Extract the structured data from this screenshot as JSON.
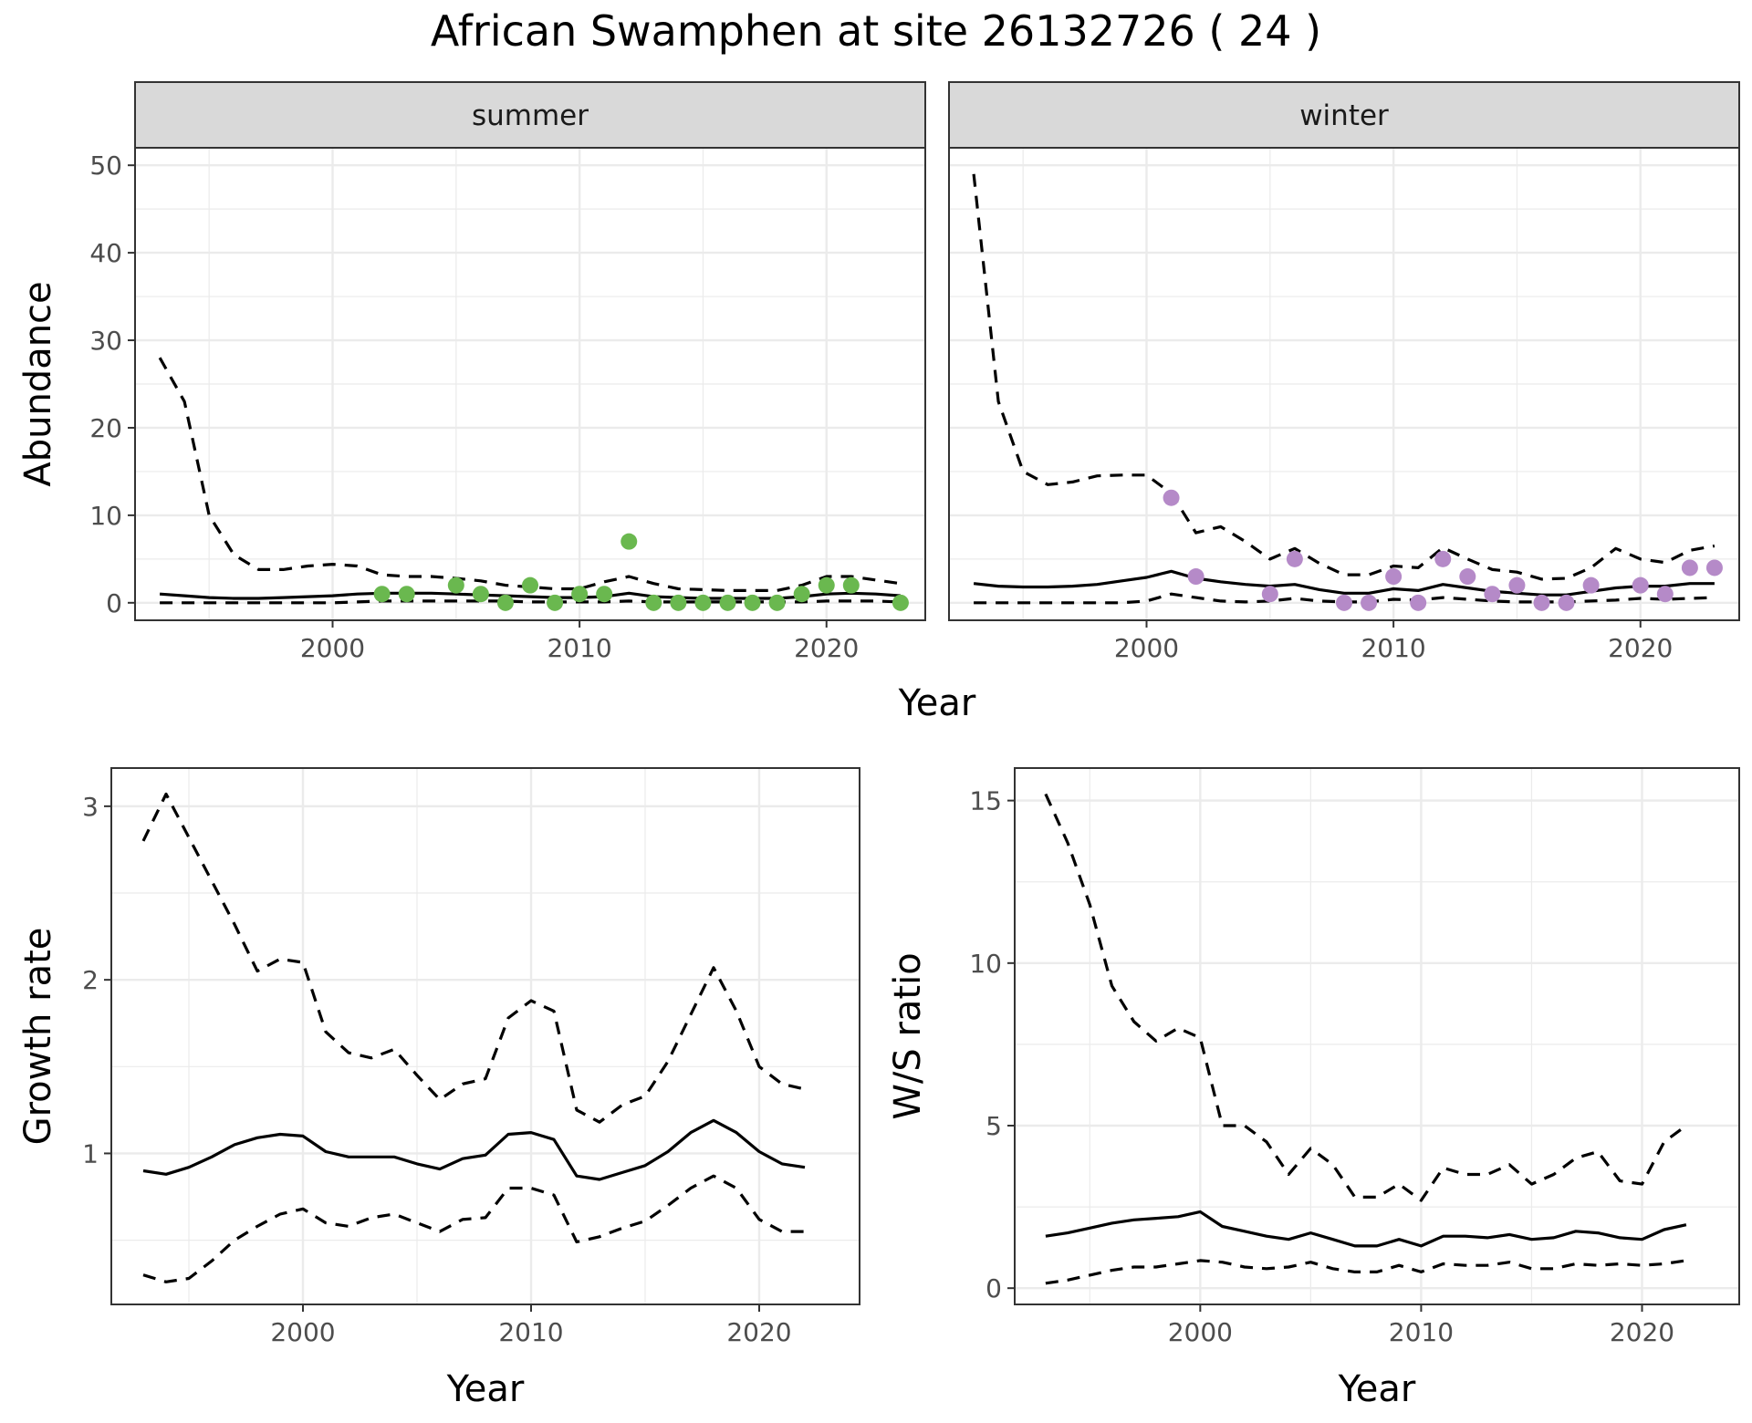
{
  "figure": {
    "title": "African Swamphen at site 26132726 ( 24 )"
  },
  "chart_data": [
    {
      "type": "line",
      "panel": "abundance",
      "facets": [
        "summer",
        "winter"
      ],
      "xlabel": "Year",
      "ylabel": "Abundance",
      "xlim": [
        1992,
        2024
      ],
      "ylim": [
        -2,
        52
      ],
      "x_ticks": [
        2000,
        2010,
        2020
      ],
      "y_ticks": [
        0,
        10,
        20,
        30,
        40,
        50
      ],
      "colors": {
        "summer": "#6ab84f",
        "winter": "#b58ac8"
      },
      "summer": {
        "x": [
          1993,
          1994,
          1995,
          1996,
          1997,
          1998,
          1999,
          2000,
          2001,
          2002,
          2003,
          2004,
          2005,
          2006,
          2007,
          2008,
          2009,
          2010,
          2011,
          2012,
          2013,
          2014,
          2015,
          2016,
          2017,
          2018,
          2019,
          2020,
          2021,
          2022,
          2023
        ],
        "mean": [
          1.0,
          0.8,
          0.6,
          0.5,
          0.5,
          0.6,
          0.7,
          0.8,
          1.0,
          1.1,
          1.1,
          1.1,
          1.0,
          0.9,
          0.8,
          0.7,
          0.6,
          0.6,
          0.7,
          1.1,
          0.7,
          0.6,
          0.5,
          0.5,
          0.5,
          0.5,
          0.7,
          1.0,
          1.1,
          1.0,
          0.8
        ],
        "upper": [
          28,
          23,
          10,
          5.5,
          3.8,
          3.8,
          4.2,
          4.4,
          4.2,
          3.2,
          3.0,
          3.0,
          2.8,
          2.5,
          2.0,
          1.8,
          1.6,
          1.6,
          2.4,
          3.0,
          2.2,
          1.6,
          1.5,
          1.4,
          1.4,
          1.4,
          2.0,
          3.0,
          3.0,
          2.6,
          2.2
        ],
        "lower": [
          0,
          0,
          0,
          0,
          0,
          0,
          0,
          0,
          0.1,
          0.2,
          0.2,
          0.2,
          0.2,
          0.2,
          0.2,
          0.1,
          0.1,
          0.1,
          0.1,
          0.2,
          0.1,
          0.1,
          0.1,
          0.1,
          0.1,
          0.1,
          0.1,
          0.2,
          0.2,
          0.2,
          0.1
        ],
        "points": {
          "x": [
            2002,
            2003,
            2005,
            2006,
            2007,
            2008,
            2009,
            2010,
            2011,
            2012,
            2013,
            2014,
            2015,
            2016,
            2017,
            2018,
            2019,
            2020,
            2021,
            2023
          ],
          "y": [
            1,
            1,
            2,
            1,
            0,
            2,
            0,
            1,
            1,
            7,
            0,
            0,
            0,
            0,
            0,
            0,
            1,
            2,
            2,
            0
          ]
        }
      },
      "winter": {
        "x": [
          1993,
          1994,
          1995,
          1996,
          1997,
          1998,
          1999,
          2000,
          2001,
          2002,
          2003,
          2004,
          2005,
          2006,
          2007,
          2008,
          2009,
          2010,
          2011,
          2012,
          2013,
          2014,
          2015,
          2016,
          2017,
          2018,
          2019,
          2020,
          2021,
          2022,
          2023
        ],
        "mean": [
          2.2,
          1.9,
          1.8,
          1.8,
          1.9,
          2.1,
          2.5,
          2.9,
          3.6,
          2.8,
          2.4,
          2.1,
          1.9,
          2.1,
          1.5,
          1.1,
          1.1,
          1.6,
          1.4,
          2.1,
          1.7,
          1.3,
          1.1,
          0.9,
          0.9,
          1.3,
          1.7,
          1.9,
          1.9,
          2.2,
          2.2
        ],
        "upper": [
          49,
          23,
          15,
          13.5,
          13.8,
          14.5,
          14.6,
          14.6,
          12.5,
          8.0,
          8.7,
          7.0,
          5.0,
          6.2,
          4.5,
          3.2,
          3.2,
          4.2,
          4.0,
          6.3,
          5.0,
          3.8,
          3.5,
          2.7,
          2.8,
          4.0,
          6.2,
          5.0,
          4.6,
          6.0,
          6.5
        ],
        "lower": [
          0,
          0,
          0,
          0,
          0,
          0,
          0,
          0.2,
          1.0,
          0.6,
          0.2,
          0.1,
          0.2,
          0.5,
          0.2,
          0.1,
          0.1,
          0.4,
          0.3,
          0.6,
          0.4,
          0.2,
          0.1,
          0.1,
          0.1,
          0.2,
          0.3,
          0.5,
          0.4,
          0.5,
          0.6
        ],
        "points": {
          "x": [
            2001,
            2002,
            2005,
            2006,
            2008,
            2009,
            2010,
            2011,
            2012,
            2013,
            2014,
            2015,
            2016,
            2017,
            2018,
            2020,
            2021,
            2022,
            2023
          ],
          "y": [
            12,
            3,
            1,
            5,
            0,
            0,
            3,
            0,
            5,
            3,
            1,
            2,
            0,
            0,
            2,
            2,
            1,
            4,
            4
          ]
        }
      }
    },
    {
      "type": "line",
      "panel": "growth",
      "xlabel": "Year",
      "ylabel": "Growth rate",
      "xlim": [
        1991.6,
        2024.4
      ],
      "ylim": [
        0.13,
        3.22
      ],
      "x_ticks": [
        2000,
        2010,
        2020
      ],
      "y_ticks": [
        1,
        2,
        3
      ],
      "x": [
        1993,
        1994,
        1995,
        1996,
        1997,
        1998,
        1999,
        2000,
        2001,
        2002,
        2003,
        2004,
        2005,
        2006,
        2007,
        2008,
        2009,
        2010,
        2011,
        2012,
        2013,
        2014,
        2015,
        2016,
        2017,
        2018,
        2019,
        2020,
        2021,
        2022
      ],
      "mean": [
        0.9,
        0.88,
        0.92,
        0.98,
        1.05,
        1.09,
        1.11,
        1.1,
        1.01,
        0.98,
        0.98,
        0.98,
        0.94,
        0.91,
        0.97,
        0.99,
        1.11,
        1.12,
        1.08,
        0.87,
        0.85,
        0.89,
        0.93,
        1.01,
        1.12,
        1.19,
        1.12,
        1.01,
        0.94,
        0.92
      ],
      "upper": [
        2.8,
        3.07,
        2.82,
        2.57,
        2.32,
        2.05,
        2.12,
        2.1,
        1.7,
        1.58,
        1.55,
        1.6,
        1.45,
        1.31,
        1.4,
        1.43,
        1.78,
        1.88,
        1.82,
        1.25,
        1.18,
        1.28,
        1.33,
        1.53,
        1.8,
        2.07,
        1.82,
        1.5,
        1.4,
        1.37
      ],
      "lower": [
        0.3,
        0.26,
        0.28,
        0.38,
        0.5,
        0.58,
        0.65,
        0.68,
        0.6,
        0.58,
        0.63,
        0.65,
        0.6,
        0.55,
        0.62,
        0.63,
        0.8,
        0.8,
        0.76,
        0.49,
        0.52,
        0.57,
        0.61,
        0.7,
        0.8,
        0.87,
        0.8,
        0.62,
        0.55,
        0.55
      ]
    },
    {
      "type": "line",
      "panel": "ratio",
      "xlabel": "Year",
      "ylabel": "W/S ratio",
      "xlim": [
        1991.6,
        2024.4
      ],
      "ylim": [
        -0.5,
        16.0
      ],
      "x_ticks": [
        2000,
        2010,
        2020
      ],
      "y_ticks": [
        0,
        5,
        10,
        15
      ],
      "x": [
        1993,
        1994,
        1995,
        1996,
        1997,
        1998,
        1999,
        2000,
        2001,
        2002,
        2003,
        2004,
        2005,
        2006,
        2007,
        2008,
        2009,
        2010,
        2011,
        2012,
        2013,
        2014,
        2015,
        2016,
        2017,
        2018,
        2019,
        2020,
        2021,
        2022
      ],
      "mean": [
        1.6,
        1.7,
        1.85,
        2.0,
        2.1,
        2.15,
        2.2,
        2.35,
        1.9,
        1.75,
        1.6,
        1.5,
        1.7,
        1.5,
        1.3,
        1.3,
        1.5,
        1.3,
        1.6,
        1.6,
        1.55,
        1.65,
        1.5,
        1.55,
        1.75,
        1.7,
        1.55,
        1.5,
        1.8,
        1.95
      ],
      "upper": [
        15.2,
        13.7,
        11.8,
        9.3,
        8.2,
        7.6,
        8.0,
        7.7,
        5.0,
        5.0,
        4.5,
        3.5,
        4.3,
        3.8,
        2.8,
        2.8,
        3.2,
        2.7,
        3.7,
        3.5,
        3.5,
        3.8,
        3.2,
        3.5,
        4.0,
        4.2,
        3.3,
        3.2,
        4.5,
        5.0
      ],
      "lower": [
        0.15,
        0.25,
        0.4,
        0.55,
        0.65,
        0.65,
        0.75,
        0.85,
        0.8,
        0.65,
        0.6,
        0.65,
        0.8,
        0.6,
        0.5,
        0.5,
        0.7,
        0.5,
        0.75,
        0.7,
        0.7,
        0.8,
        0.6,
        0.6,
        0.75,
        0.7,
        0.75,
        0.7,
        0.75,
        0.85
      ]
    }
  ]
}
